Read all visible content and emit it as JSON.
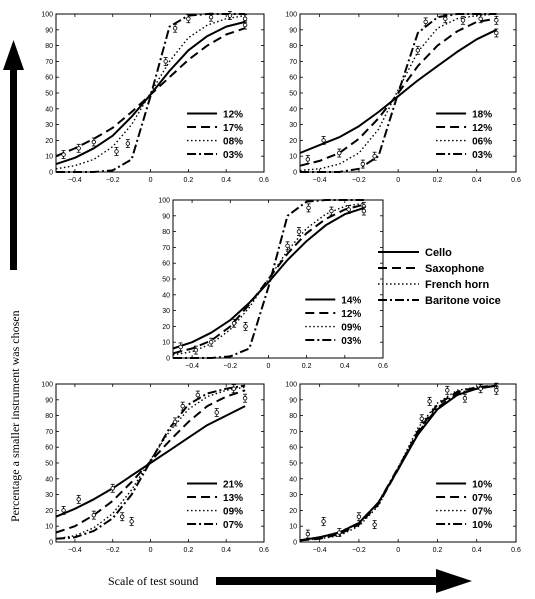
{
  "figure": {
    "ylabel": "Percentage a smaller instrument was chosen",
    "xlabel": "Scale of test sound",
    "legend": [
      {
        "name": "Cello",
        "dash": "solid"
      },
      {
        "name": "Saxophone",
        "dash": "dashed"
      },
      {
        "name": "French horn",
        "dash": "dotted"
      },
      {
        "name": "Baritone voice",
        "dash": "dashdot"
      }
    ]
  },
  "chart_data": [
    {
      "type": "line",
      "panel": "top-left",
      "xlim": [
        -0.5,
        0.6
      ],
      "ylim": [
        0,
        100
      ],
      "xticks": [
        -0.4,
        -0.2,
        0,
        0.2,
        0.4,
        0.6
      ],
      "yticks": [
        0,
        10,
        20,
        30,
        40,
        50,
        60,
        70,
        80,
        90,
        100
      ],
      "xticklabels": [
        "−0.4",
        "−0.2",
        "0",
        "0.2",
        "0.4",
        "0.6"
      ],
      "series": [
        {
          "instrument": "Cello",
          "dash": "solid",
          "label": "12%",
          "x": [
            -0.5,
            -0.4,
            -0.3,
            -0.2,
            -0.1,
            0,
            0.1,
            0.2,
            0.3,
            0.4,
            0.5
          ],
          "y": [
            5,
            9,
            15,
            23,
            35,
            49,
            64,
            77,
            86,
            92,
            95
          ]
        },
        {
          "instrument": "Saxophone",
          "dash": "dashed",
          "label": "17%",
          "x": [
            -0.5,
            -0.4,
            -0.3,
            -0.2,
            -0.1,
            0,
            0.1,
            0.2,
            0.3,
            0.4,
            0.5
          ],
          "y": [
            10,
            15,
            21,
            28,
            38,
            49,
            60,
            71,
            80,
            87,
            91
          ]
        },
        {
          "instrument": "French horn",
          "dash": "dotted",
          "label": "08%",
          "x": [
            -0.5,
            -0.4,
            -0.3,
            -0.2,
            -0.1,
            0,
            0.1,
            0.2,
            0.3,
            0.4,
            0.5
          ],
          "y": [
            2,
            4,
            8,
            16,
            30,
            50,
            70,
            85,
            93,
            97,
            99
          ]
        },
        {
          "instrument": "Baritone voice",
          "dash": "dashdot",
          "label": "03%",
          "x": [
            -0.5,
            -0.4,
            -0.3,
            -0.2,
            -0.1,
            0,
            0.1,
            0.2,
            0.3,
            0.4,
            0.5
          ],
          "y": [
            0,
            0,
            0,
            1,
            8,
            48,
            92,
            99,
            100,
            100,
            100
          ]
        }
      ],
      "points": [
        {
          "x": -0.46,
          "y": 11
        },
        {
          "x": -0.38,
          "y": 15
        },
        {
          "x": -0.3,
          "y": 19
        },
        {
          "x": -0.18,
          "y": 13
        },
        {
          "x": -0.12,
          "y": 18
        },
        {
          "x": 0.08,
          "y": 70
        },
        {
          "x": 0.13,
          "y": 91
        },
        {
          "x": 0.2,
          "y": 97
        },
        {
          "x": 0.32,
          "y": 98
        },
        {
          "x": 0.42,
          "y": 99
        },
        {
          "x": 0.5,
          "y": 97
        },
        {
          "x": 0.5,
          "y": 93
        }
      ]
    },
    {
      "type": "line",
      "panel": "top-right",
      "xlim": [
        -0.5,
        0.6
      ],
      "ylim": [
        0,
        100
      ],
      "xticks": [
        -0.4,
        -0.2,
        0,
        0.2,
        0.4,
        0.6
      ],
      "yticks": [
        0,
        10,
        20,
        30,
        40,
        50,
        60,
        70,
        80,
        90,
        100
      ],
      "xticklabels": [
        "−0.4",
        "−0.2",
        "0",
        "0.2",
        "0.4",
        "0.6"
      ],
      "series": [
        {
          "instrument": "Cello",
          "dash": "solid",
          "label": "18%",
          "x": [
            -0.5,
            -0.4,
            -0.3,
            -0.2,
            -0.1,
            0,
            0.1,
            0.2,
            0.3,
            0.4,
            0.5
          ],
          "y": [
            12,
            17,
            22,
            29,
            38,
            48,
            58,
            67,
            76,
            84,
            90
          ]
        },
        {
          "instrument": "Saxophone",
          "dash": "dashed",
          "label": "12%",
          "x": [
            -0.5,
            -0.4,
            -0.3,
            -0.2,
            -0.1,
            0,
            0.1,
            0.2,
            0.3,
            0.4,
            0.5
          ],
          "y": [
            4,
            7,
            12,
            21,
            34,
            50,
            67,
            80,
            89,
            95,
            97
          ]
        },
        {
          "instrument": "French horn",
          "dash": "dotted",
          "label": "06%",
          "x": [
            -0.5,
            -0.4,
            -0.3,
            -0.2,
            -0.1,
            0,
            0.1,
            0.2,
            0.3,
            0.4,
            0.5
          ],
          "y": [
            1,
            2,
            5,
            12,
            27,
            52,
            76,
            91,
            97,
            99,
            100
          ]
        },
        {
          "instrument": "Baritone voice",
          "dash": "dashdot",
          "label": "03%",
          "x": [
            -0.5,
            -0.4,
            -0.3,
            -0.2,
            -0.1,
            0,
            0.1,
            0.2,
            0.3,
            0.4,
            0.5
          ],
          "y": [
            0,
            0,
            0,
            2,
            10,
            50,
            88,
            98,
            100,
            100,
            100
          ]
        }
      ],
      "points": [
        {
          "x": -0.46,
          "y": 8
        },
        {
          "x": -0.38,
          "y": 20
        },
        {
          "x": -0.3,
          "y": 12
        },
        {
          "x": -0.18,
          "y": 5
        },
        {
          "x": -0.12,
          "y": 10
        },
        {
          "x": 0.1,
          "y": 77
        },
        {
          "x": 0.14,
          "y": 95
        },
        {
          "x": 0.24,
          "y": 97
        },
        {
          "x": 0.33,
          "y": 96
        },
        {
          "x": 0.42,
          "y": 97
        },
        {
          "x": 0.5,
          "y": 96
        },
        {
          "x": 0.5,
          "y": 88
        }
      ]
    },
    {
      "type": "line",
      "panel": "middle",
      "xlim": [
        -0.5,
        0.6
      ],
      "ylim": [
        0,
        100
      ],
      "xticks": [
        -0.4,
        -0.2,
        0,
        0.2,
        0.4,
        0.6
      ],
      "yticks": [
        0,
        10,
        20,
        30,
        40,
        50,
        60,
        70,
        80,
        90,
        100
      ],
      "xticklabels": [
        "−0.4",
        "−0.2",
        "0",
        "0.2",
        "0.4",
        "0.6"
      ],
      "series": [
        {
          "instrument": "Cello",
          "dash": "solid",
          "label": "14%",
          "x": [
            -0.5,
            -0.4,
            -0.3,
            -0.2,
            -0.1,
            0,
            0.1,
            0.2,
            0.3,
            0.4,
            0.5
          ],
          "y": [
            6,
            10,
            16,
            24,
            35,
            48,
            62,
            74,
            84,
            91,
            95
          ]
        },
        {
          "instrument": "Saxophone",
          "dash": "dashed",
          "label": "12%",
          "x": [
            -0.5,
            -0.4,
            -0.3,
            -0.2,
            -0.1,
            0,
            0.1,
            0.2,
            0.3,
            0.4,
            0.5
          ],
          "y": [
            3,
            6,
            11,
            20,
            34,
            50,
            66,
            79,
            88,
            94,
            97
          ]
        },
        {
          "instrument": "French horn",
          "dash": "dotted",
          "label": "09%",
          "x": [
            -0.5,
            -0.4,
            -0.3,
            -0.2,
            -0.1,
            0,
            0.1,
            0.2,
            0.3,
            0.4,
            0.5
          ],
          "y": [
            2,
            4,
            9,
            18,
            32,
            50,
            68,
            82,
            91,
            96,
            98
          ]
        },
        {
          "instrument": "Baritone voice",
          "dash": "dashdot",
          "label": "03%",
          "x": [
            -0.5,
            -0.4,
            -0.3,
            -0.2,
            -0.1,
            0,
            0.1,
            0.2,
            0.3,
            0.4,
            0.5
          ],
          "y": [
            0,
            0,
            0,
            1,
            6,
            45,
            90,
            99,
            100,
            100,
            100
          ]
        }
      ],
      "points": [
        {
          "x": -0.46,
          "y": 7
        },
        {
          "x": -0.38,
          "y": 5
        },
        {
          "x": -0.3,
          "y": 10
        },
        {
          "x": -0.18,
          "y": 22
        },
        {
          "x": -0.12,
          "y": 20
        },
        {
          "x": 0.1,
          "y": 71
        },
        {
          "x": 0.16,
          "y": 80
        },
        {
          "x": 0.21,
          "y": 95
        },
        {
          "x": 0.33,
          "y": 93
        },
        {
          "x": 0.42,
          "y": 94
        },
        {
          "x": 0.5,
          "y": 96
        },
        {
          "x": 0.5,
          "y": 93
        }
      ]
    },
    {
      "type": "line",
      "panel": "bottom-left",
      "xlim": [
        -0.5,
        0.6
      ],
      "ylim": [
        0,
        100
      ],
      "xticks": [
        -0.4,
        -0.2,
        0,
        0.2,
        0.4,
        0.6
      ],
      "yticks": [
        0,
        10,
        20,
        30,
        40,
        50,
        60,
        70,
        80,
        90,
        100
      ],
      "xticklabels": [
        "−0.4",
        "−0.2",
        "0",
        "0.2",
        "0.4",
        "0.6"
      ],
      "series": [
        {
          "instrument": "Cello",
          "dash": "solid",
          "label": "21%",
          "x": [
            -0.5,
            -0.4,
            -0.3,
            -0.2,
            -0.1,
            0,
            0.1,
            0.2,
            0.3,
            0.4,
            0.5
          ],
          "y": [
            16,
            21,
            27,
            34,
            42,
            50,
            58,
            66,
            74,
            80,
            86
          ]
        },
        {
          "instrument": "Saxophone",
          "dash": "dashed",
          "label": "13%",
          "x": [
            -0.5,
            -0.4,
            -0.3,
            -0.2,
            -0.1,
            0,
            0.1,
            0.2,
            0.3,
            0.4,
            0.5
          ],
          "y": [
            6,
            10,
            17,
            26,
            38,
            51,
            64,
            76,
            86,
            92,
            96
          ]
        },
        {
          "instrument": "French horn",
          "dash": "dotted",
          "label": "09%",
          "x": [
            -0.5,
            -0.4,
            -0.3,
            -0.2,
            -0.1,
            0,
            0.1,
            0.2,
            0.3,
            0.4,
            0.5
          ],
          "y": [
            2,
            4,
            9,
            18,
            33,
            52,
            70,
            84,
            92,
            96,
            98
          ]
        },
        {
          "instrument": "Baritone voice",
          "dash": "dashdot",
          "label": "07%",
          "x": [
            -0.5,
            -0.4,
            -0.3,
            -0.2,
            -0.1,
            0,
            0.1,
            0.2,
            0.3,
            0.4,
            0.5
          ],
          "y": [
            2,
            3,
            7,
            15,
            30,
            51,
            72,
            87,
            94,
            97,
            99
          ]
        }
      ],
      "points": [
        {
          "x": -0.46,
          "y": 20
        },
        {
          "x": -0.38,
          "y": 27
        },
        {
          "x": -0.3,
          "y": 17
        },
        {
          "x": -0.2,
          "y": 34
        },
        {
          "x": -0.15,
          "y": 16
        },
        {
          "x": -0.1,
          "y": 13
        },
        {
          "x": 0.13,
          "y": 76
        },
        {
          "x": 0.17,
          "y": 86
        },
        {
          "x": 0.25,
          "y": 93
        },
        {
          "x": 0.35,
          "y": 82
        },
        {
          "x": 0.44,
          "y": 97
        },
        {
          "x": 0.5,
          "y": 91
        }
      ]
    },
    {
      "type": "line",
      "panel": "bottom-right",
      "xlim": [
        -0.5,
        0.6
      ],
      "ylim": [
        0,
        100
      ],
      "xticks": [
        -0.4,
        -0.2,
        0,
        0.2,
        0.4,
        0.6
      ],
      "yticks": [
        0,
        10,
        20,
        30,
        40,
        50,
        60,
        70,
        80,
        90,
        100
      ],
      "xticklabels": [
        "−0.4",
        "−0.2",
        "0",
        "0.2",
        "0.4",
        "0.6"
      ],
      "series": [
        {
          "instrument": "Cello",
          "dash": "solid",
          "label": "10%",
          "x": [
            -0.5,
            -0.4,
            -0.3,
            -0.2,
            -0.1,
            0,
            0.1,
            0.2,
            0.3,
            0.4,
            0.5
          ],
          "y": [
            1,
            3,
            6,
            12,
            25,
            46,
            68,
            84,
            93,
            97,
            99
          ]
        },
        {
          "instrument": "Saxophone",
          "dash": "dashed",
          "label": "07%",
          "x": [
            -0.5,
            -0.4,
            -0.3,
            -0.2,
            -0.1,
            0,
            0.1,
            0.2,
            0.3,
            0.4,
            0.5
          ],
          "y": [
            1,
            2,
            5,
            11,
            24,
            46,
            70,
            87,
            95,
            98,
            99
          ]
        },
        {
          "instrument": "French horn",
          "dash": "dotted",
          "label": "07%",
          "x": [
            -0.5,
            -0.4,
            -0.3,
            -0.2,
            -0.1,
            0,
            0.1,
            0.2,
            0.3,
            0.4,
            0.5
          ],
          "y": [
            1,
            2,
            4,
            10,
            23,
            47,
            72,
            88,
            96,
            98,
            99
          ]
        },
        {
          "instrument": "Baritone voice",
          "dash": "dashdot",
          "label": "10%",
          "x": [
            -0.5,
            -0.4,
            -0.3,
            -0.2,
            -0.1,
            0,
            0.1,
            0.2,
            0.3,
            0.4,
            0.5
          ],
          "y": [
            1,
            3,
            6,
            12,
            25,
            47,
            69,
            85,
            94,
            97,
            99
          ]
        }
      ],
      "points": [
        {
          "x": -0.46,
          "y": 5
        },
        {
          "x": -0.38,
          "y": 13
        },
        {
          "x": -0.3,
          "y": 6
        },
        {
          "x": -0.2,
          "y": 16
        },
        {
          "x": -0.12,
          "y": 11
        },
        {
          "x": 0.12,
          "y": 78
        },
        {
          "x": 0.16,
          "y": 89
        },
        {
          "x": 0.25,
          "y": 96
        },
        {
          "x": 0.34,
          "y": 91
        },
        {
          "x": 0.42,
          "y": 97
        },
        {
          "x": 0.5,
          "y": 98
        },
        {
          "x": 0.5,
          "y": 96
        }
      ]
    }
  ]
}
